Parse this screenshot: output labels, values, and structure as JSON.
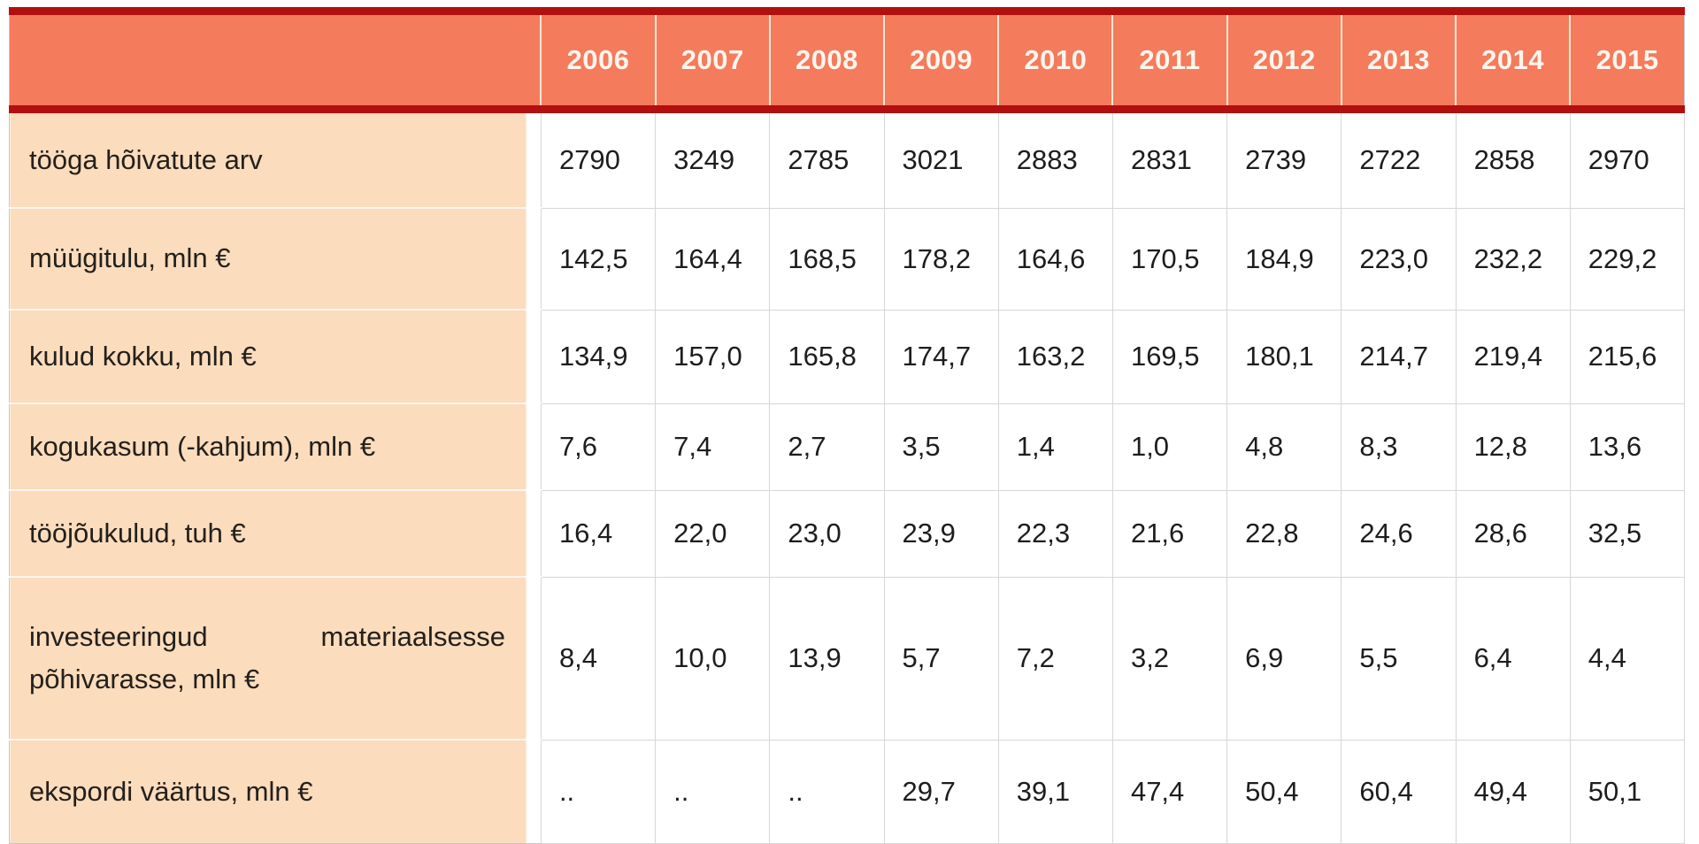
{
  "table": {
    "header": {
      "corner": "",
      "years": [
        "2006",
        "2007",
        "2008",
        "2009",
        "2010",
        "2011",
        "2012",
        "2013",
        "2014",
        "2015"
      ]
    },
    "rows": [
      {
        "label": "tööga hõivatute arv",
        "values": [
          "2790",
          "3249",
          "2785",
          "3021",
          "2883",
          "2831",
          "2739",
          "2722",
          "2858",
          "2970"
        ]
      },
      {
        "label": "müügitulu, mln €",
        "values": [
          "142,5",
          "164,4",
          "168,5",
          "178,2",
          "164,6",
          "170,5",
          "184,9",
          "223,0",
          "232,2",
          "229,2"
        ]
      },
      {
        "label": "kulud kokku, mln €",
        "values": [
          "134,9",
          "157,0",
          "165,8",
          "174,7",
          "163,2",
          "169,5",
          "180,1",
          "214,7",
          "219,4",
          "215,6"
        ]
      },
      {
        "label": "kogukasum (-kahjum), mln €",
        "values": [
          "7,6",
          "7,4",
          "2,7",
          "3,5",
          "1,4",
          "1,0",
          "4,8",
          "8,3",
          "12,8",
          "13,6"
        ]
      },
      {
        "label": "tööjõukulud, tuh €",
        "values": [
          "16,4",
          "22,0",
          "23,0",
          "23,9",
          "22,3",
          "21,6",
          "22,8",
          "24,6",
          "28,6",
          "32,5"
        ]
      },
      {
        "label": "investeeringud materiaalsesse põhivarasse, mln €",
        "values": [
          "8,4",
          "10,0",
          "13,9",
          "5,7",
          "7,2",
          "3,2",
          "6,9",
          "5,5",
          "6,4",
          "4,4"
        ]
      },
      {
        "label": "ekspordi väärtus, mln €",
        "values": [
          "..",
          "..",
          "..",
          "29,7",
          "39,1",
          "47,4",
          "50,4",
          "60,4",
          "49,4",
          "50,1"
        ]
      }
    ]
  },
  "colors": {
    "header_fill": "#F47B5C",
    "header_text": "#FDF6EE",
    "accent_border": "#B21010",
    "label_fill": "#FBDCBC",
    "gridline": "#D8D6D6",
    "value_text": "#1D1D1D"
  },
  "chart_data": {
    "type": "table",
    "title": "",
    "categories": [
      "2006",
      "2007",
      "2008",
      "2009",
      "2010",
      "2011",
      "2012",
      "2013",
      "2014",
      "2015"
    ],
    "series": [
      {
        "name": "tööga hõivatute arv",
        "values": [
          2790,
          3249,
          2785,
          3021,
          2883,
          2831,
          2739,
          2722,
          2858,
          2970
        ]
      },
      {
        "name": "müügitulu, mln €",
        "values": [
          142.5,
          164.4,
          168.5,
          178.2,
          164.6,
          170.5,
          184.9,
          223.0,
          232.2,
          229.2
        ]
      },
      {
        "name": "kulud kokku, mln €",
        "values": [
          134.9,
          157.0,
          165.8,
          174.7,
          163.2,
          169.5,
          180.1,
          214.7,
          219.4,
          215.6
        ]
      },
      {
        "name": "kogukasum (-kahjum), mln €",
        "values": [
          7.6,
          7.4,
          2.7,
          3.5,
          1.4,
          1.0,
          4.8,
          8.3,
          12.8,
          13.6
        ]
      },
      {
        "name": "tööjõukulud, tuh €",
        "values": [
          16.4,
          22.0,
          23.0,
          23.9,
          22.3,
          21.6,
          22.8,
          24.6,
          28.6,
          32.5
        ]
      },
      {
        "name": "investeeringud materiaalsesse põhivarasse, mln €",
        "values": [
          8.4,
          10.0,
          13.9,
          5.7,
          7.2,
          3.2,
          6.9,
          5.5,
          6.4,
          4.4
        ]
      },
      {
        "name": "ekspordi väärtus, mln €",
        "values": [
          null,
          null,
          null,
          29.7,
          39.1,
          47.4,
          50.4,
          60.4,
          49.4,
          50.1
        ]
      }
    ],
    "missing_value_marker": ".."
  }
}
